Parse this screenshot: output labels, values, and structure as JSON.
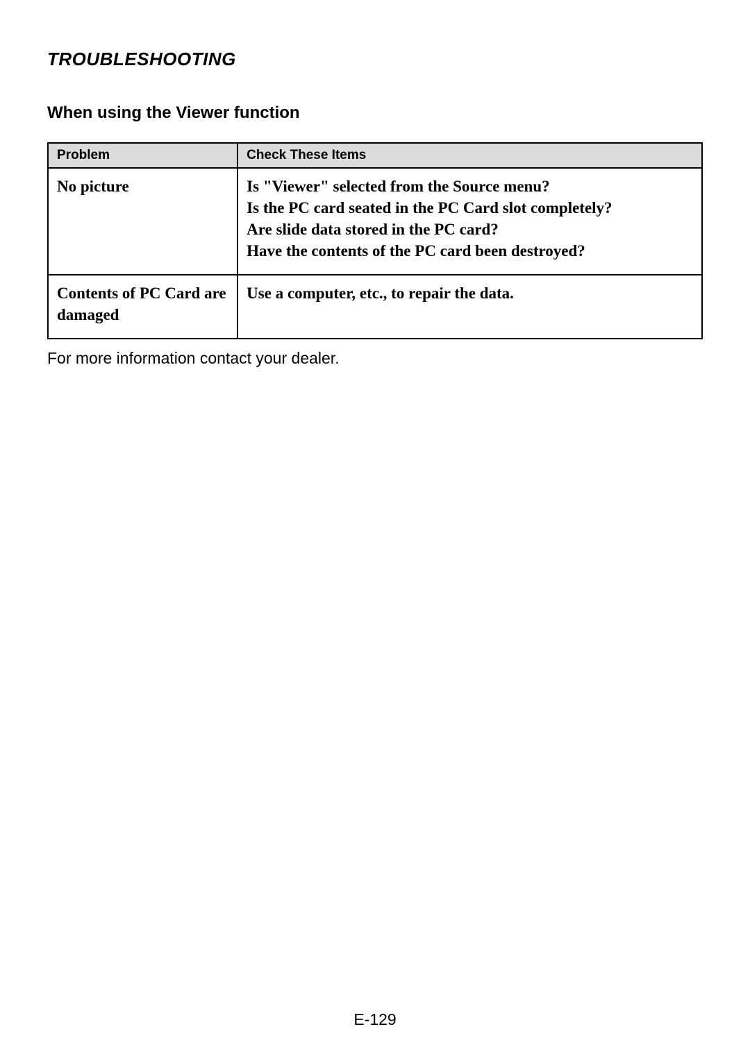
{
  "section_title": "TROUBLESHOOTING",
  "subsection_title": "When using the Viewer function",
  "table": {
    "headers": {
      "problem": "Problem",
      "check": "Check These Items"
    },
    "rows": [
      {
        "problem": "No picture",
        "check_lines": [
          "Is \"Viewer\" selected from the Source menu?",
          "Is the PC card seated in the PC Card slot completely?",
          "Are slide data stored in the PC card?",
          "Have the contents of the PC card been destroyed?"
        ]
      },
      {
        "problem": "Contents of PC Card are damaged",
        "check_lines": [
          "Use a computer, etc., to repair the data."
        ]
      }
    ]
  },
  "footer_note": "For more information contact your dealer.",
  "page_number": "E-129"
}
